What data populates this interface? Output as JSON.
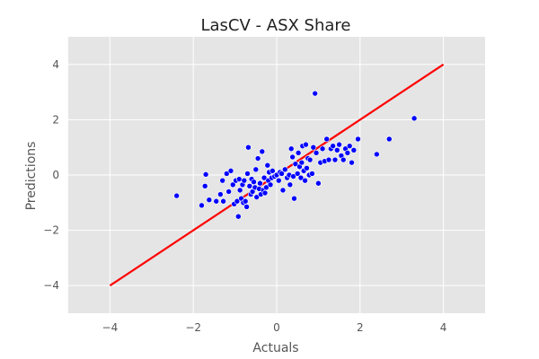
{
  "chart_data": {
    "type": "scatter",
    "title": "LasCV - ASX Share",
    "xlabel": "Actuals",
    "ylabel": "Predictions",
    "xlim": [
      -5,
      5
    ],
    "ylim": [
      -5,
      5
    ],
    "xticks": [
      -4,
      -2,
      0,
      2,
      4
    ],
    "yticks": [
      -4,
      -2,
      0,
      2,
      4
    ],
    "xtick_labels": [
      "−4",
      "−2",
      "0",
      "2",
      "4"
    ],
    "ytick_labels": [
      "−4",
      "−2",
      "0",
      "2",
      "4"
    ],
    "grid": true,
    "background": "#e5e5e5",
    "point_color": "#0000ff",
    "line_color": "#ff0000",
    "reference_line": {
      "x": [
        -4,
        4
      ],
      "y": [
        -4,
        4
      ]
    },
    "points": [
      [
        -2.4,
        -0.75
      ],
      [
        -1.8,
        -1.1
      ],
      [
        -1.72,
        -0.4
      ],
      [
        -1.7,
        0.02
      ],
      [
        -1.62,
        -0.9
      ],
      [
        -1.45,
        -0.95
      ],
      [
        -1.35,
        -0.7
      ],
      [
        -1.3,
        -0.2
      ],
      [
        -1.28,
        -0.95
      ],
      [
        -1.2,
        0.05
      ],
      [
        -1.15,
        -0.6
      ],
      [
        -1.1,
        0.15
      ],
      [
        -1.05,
        -0.35
      ],
      [
        -1.02,
        -1.05
      ],
      [
        -0.98,
        -0.2
      ],
      [
        -0.95,
        -0.95
      ],
      [
        -0.92,
        -1.5
      ],
      [
        -0.9,
        -0.15
      ],
      [
        -0.88,
        -0.55
      ],
      [
        -0.85,
        -0.85
      ],
      [
        -0.82,
        -0.35
      ],
      [
        -0.8,
        -1.0
      ],
      [
        -0.78,
        -0.2
      ],
      [
        -0.75,
        -0.95
      ],
      [
        -0.72,
        -1.15
      ],
      [
        -0.7,
        0.05
      ],
      [
        -0.68,
        1.0
      ],
      [
        -0.65,
        -0.4
      ],
      [
        -0.62,
        -0.7
      ],
      [
        -0.6,
        -0.15
      ],
      [
        -0.58,
        -0.6
      ],
      [
        -0.55,
        -0.25
      ],
      [
        -0.52,
        -0.45
      ],
      [
        -0.5,
        0.2
      ],
      [
        -0.48,
        -0.8
      ],
      [
        -0.45,
        0.6
      ],
      [
        -0.42,
        -0.5
      ],
      [
        -0.4,
        -0.3
      ],
      [
        -0.38,
        -0.7
      ],
      [
        -0.35,
        0.85
      ],
      [
        -0.32,
        -0.55
      ],
      [
        -0.3,
        -0.1
      ],
      [
        -0.28,
        -0.65
      ],
      [
        -0.25,
        -0.45
      ],
      [
        -0.22,
        0.35
      ],
      [
        -0.2,
        -0.2
      ],
      [
        -0.18,
        0.1
      ],
      [
        -0.15,
        -0.35
      ],
      [
        -0.12,
        -0.1
      ],
      [
        -0.1,
        0.15
      ],
      [
        -0.05,
        -0.05
      ],
      [
        0.0,
        0.0
      ],
      [
        0.05,
        -0.2
      ],
      [
        0.08,
        0.1
      ],
      [
        0.12,
        0.05
      ],
      [
        0.15,
        -0.55
      ],
      [
        0.2,
        0.2
      ],
      [
        0.25,
        -0.1
      ],
      [
        0.3,
        0.0
      ],
      [
        0.32,
        -0.35
      ],
      [
        0.35,
        0.95
      ],
      [
        0.38,
        0.65
      ],
      [
        0.4,
        -0.05
      ],
      [
        0.42,
        -0.85
      ],
      [
        0.45,
        0.4
      ],
      [
        0.5,
        0.05
      ],
      [
        0.52,
        0.8
      ],
      [
        0.55,
        0.3
      ],
      [
        0.58,
        -0.1
      ],
      [
        0.6,
        0.45
      ],
      [
        0.62,
        1.05
      ],
      [
        0.65,
        0.15
      ],
      [
        0.68,
        -0.2
      ],
      [
        0.7,
        1.1
      ],
      [
        0.72,
        0.25
      ],
      [
        0.75,
        0.6
      ],
      [
        0.78,
        0.0
      ],
      [
        0.8,
        0.55
      ],
      [
        0.85,
        0.05
      ],
      [
        0.88,
        1.0
      ],
      [
        0.92,
        2.95
      ],
      [
        0.95,
        0.8
      ],
      [
        1.0,
        -0.3
      ],
      [
        1.05,
        0.45
      ],
      [
        1.1,
        0.95
      ],
      [
        1.15,
        0.5
      ],
      [
        1.2,
        1.3
      ],
      [
        1.25,
        0.55
      ],
      [
        1.3,
        0.95
      ],
      [
        1.35,
        1.05
      ],
      [
        1.4,
        0.55
      ],
      [
        1.45,
        0.9
      ],
      [
        1.5,
        1.1
      ],
      [
        1.55,
        0.7
      ],
      [
        1.6,
        0.55
      ],
      [
        1.65,
        0.95
      ],
      [
        1.7,
        0.8
      ],
      [
        1.75,
        1.05
      ],
      [
        1.8,
        0.45
      ],
      [
        1.85,
        0.9
      ],
      [
        1.95,
        1.3
      ],
      [
        2.4,
        0.75
      ],
      [
        2.7,
        1.3
      ],
      [
        3.3,
        2.05
      ]
    ]
  }
}
